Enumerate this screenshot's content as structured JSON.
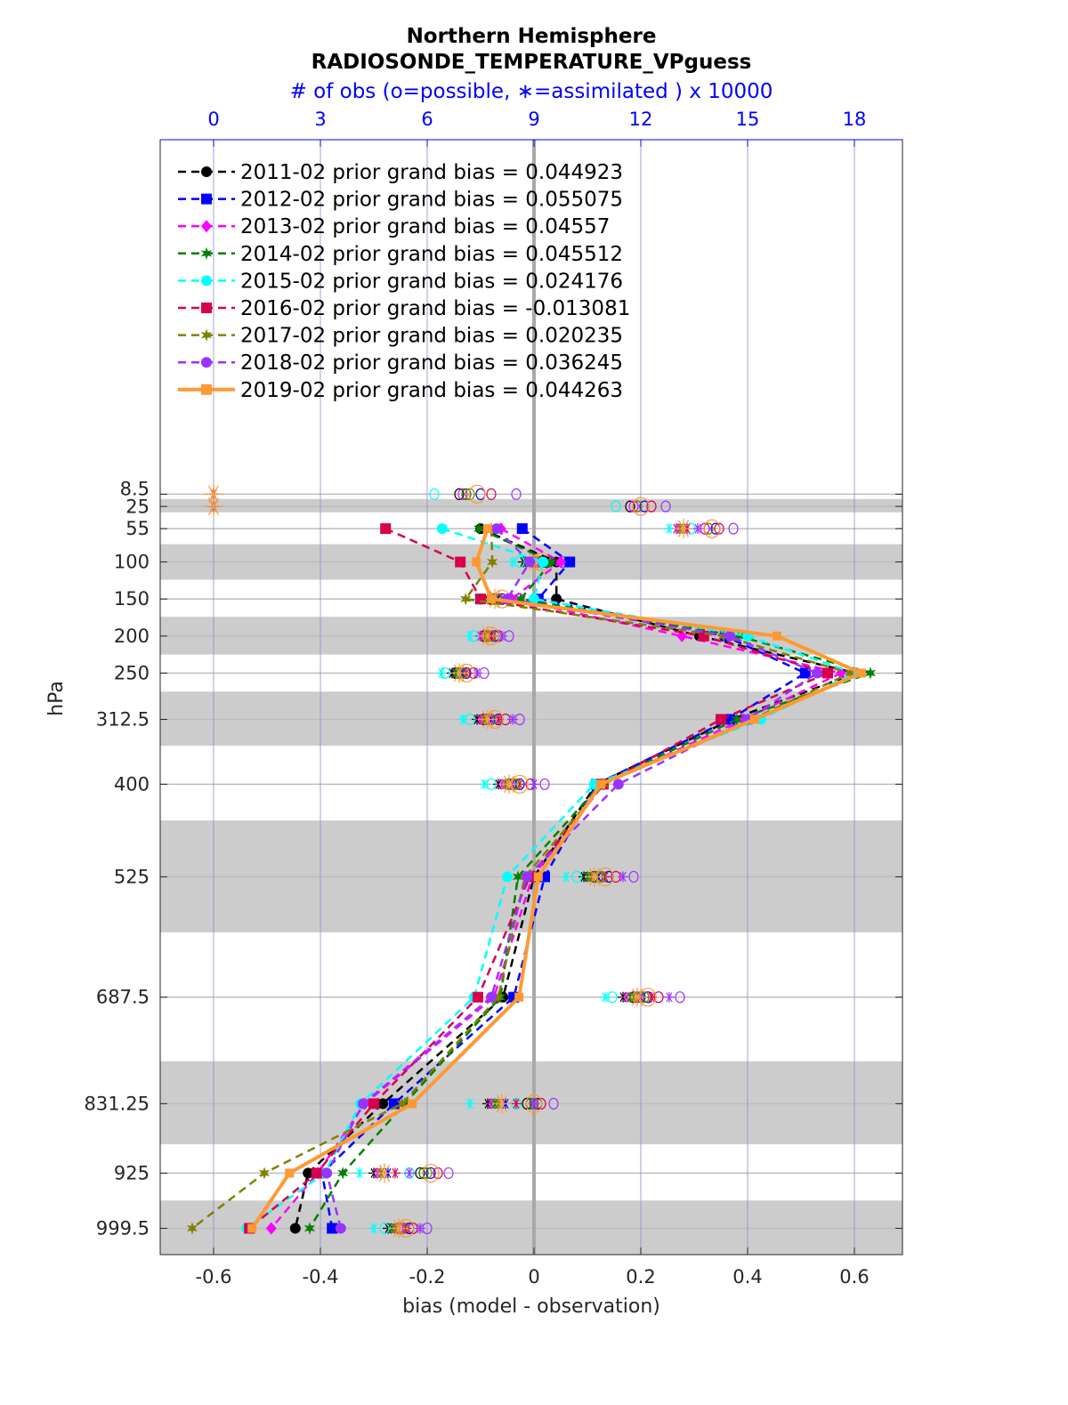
{
  "chart_data": {
    "type": "line",
    "title": "Northern Hemisphere",
    "subtitle": "RADIOSONDE_TEMPERATURE_VPguess",
    "xlabel": "bias (model - observation)",
    "ylabel": "hPa",
    "top_xlabel": "# of obs (o=possible, ∗=assimilated ) x 10000",
    "xlim": [
      -0.7,
      0.69
    ],
    "xticks": [
      -0.6,
      -0.4,
      -0.2,
      0,
      0.2,
      0.4,
      0.6
    ],
    "xtick_labels": [
      "-0.6",
      "-0.4",
      "-0.2",
      "0",
      "0.2",
      "0.4",
      "0.6"
    ],
    "top_xlim": [
      -1.5,
      19.35
    ],
    "top_xticks": [
      0,
      3,
      6,
      9,
      12,
      15,
      18
    ],
    "top_xtick_labels": [
      "0",
      "3",
      "6",
      "9",
      "12",
      "15",
      "18"
    ],
    "ylim": [
      -470,
      1035
    ],
    "y_reversed": true,
    "levels": [
      8.5,
      25,
      55,
      100,
      150,
      200,
      250,
      312.5,
      400,
      525,
      687.5,
      831.25,
      925,
      999.5
    ],
    "level_labels": [
      "8.5",
      "25",
      "55",
      "100",
      "150",
      "200",
      "250",
      "312.5",
      "400",
      "525",
      "687.5",
      "831.25",
      "925",
      "999.5"
    ],
    "shaded_layers": [
      [
        15,
        33
      ],
      [
        76,
        124
      ],
      [
        174,
        225
      ],
      [
        275,
        348
      ],
      [
        449,
        600
      ],
      [
        774,
        886
      ],
      [
        962,
        1035
      ]
    ],
    "grid": true,
    "legend_placement": "top-left",
    "series": [
      {
        "name": "2011-02 prior grand bias = 0.044923",
        "color": "#000000",
        "marker": "circle",
        "style": "dashed",
        "bias": [
          null,
          null,
          -0.1,
          0.042,
          0.042,
          0.31,
          0.603,
          0.37,
          0.117,
          0.0,
          -0.058,
          -0.283,
          -0.423,
          -0.447
        ],
        "possible": [
          6.9,
          11.7,
          13.8,
          9.0,
          7.8,
          7.6,
          6.8,
          7.6,
          8.3,
          10.7,
          11.8,
          8.8,
          5.8,
          5.2
        ],
        "assimilated": [
          0,
          0,
          13.0,
          8.7,
          7.7,
          7.5,
          6.7,
          7.4,
          8.0,
          10.4,
          11.5,
          7.7,
          4.5,
          4.9
        ]
      },
      {
        "name": "2012-02 prior grand bias = 0.055075",
        "color": "#0000ff",
        "marker": "square",
        "style": "dashed",
        "bias": [
          null,
          null,
          -0.022,
          0.067,
          0.008,
          0.358,
          0.508,
          0.367,
          0.117,
          0.02,
          -0.038,
          -0.262,
          -0.397,
          -0.378
        ],
        "possible": [
          7.5,
          12.1,
          14.1,
          9.3,
          8.1,
          7.9,
          7.1,
          8.0,
          8.6,
          11.1,
          12.2,
          9.1,
          6.1,
          5.5
        ],
        "assimilated": [
          0,
          0,
          13.2,
          9.0,
          8.0,
          7.7,
          7.0,
          7.8,
          8.4,
          10.8,
          12.0,
          8.2,
          4.9,
          5.2
        ]
      },
      {
        "name": "2013-02 prior grand bias = 0.04557",
        "color": "#ff00ff",
        "marker": "diamond",
        "style": "dashed",
        "bias": [
          null,
          null,
          -0.062,
          0.05,
          -0.042,
          0.277,
          0.575,
          0.392,
          0.13,
          -0.003,
          -0.075,
          -0.317,
          -0.405,
          -0.492
        ],
        "possible": [
          7.0,
          11.8,
          13.8,
          9.0,
          7.9,
          7.7,
          6.9,
          7.7,
          8.3,
          10.8,
          11.9,
          8.9,
          5.9,
          5.2
        ],
        "assimilated": [
          0,
          0,
          13.0,
          8.8,
          7.8,
          7.5,
          6.8,
          7.5,
          8.1,
          10.5,
          11.6,
          7.8,
          4.6,
          5.0
        ]
      },
      {
        "name": "2014-02 prior grand bias = 0.045512",
        "color": "#008000",
        "marker": "star",
        "style": "dashed",
        "bias": [
          null,
          null,
          -0.103,
          0.033,
          -0.025,
          0.383,
          0.63,
          0.38,
          0.125,
          -0.03,
          -0.063,
          -0.242,
          -0.358,
          -0.42
        ],
        "possible": [
          7.1,
          11.9,
          13.9,
          9.1,
          7.9,
          7.7,
          6.9,
          7.8,
          8.4,
          10.8,
          12.0,
          8.9,
          5.9,
          5.3
        ],
        "assimilated": [
          0,
          0,
          13.1,
          8.8,
          7.8,
          7.6,
          6.8,
          7.6,
          8.2,
          10.5,
          11.7,
          7.9,
          4.7,
          5.0
        ]
      },
      {
        "name": "2015-02 prior grand bias = 0.024176",
        "color": "#00ffff",
        "marker": "circle",
        "style": "dashed",
        "bias": [
          null,
          null,
          -0.172,
          0.017,
          0.0,
          0.4,
          0.6,
          0.425,
          0.113,
          -0.05,
          -0.112,
          -0.325,
          -0.392,
          -0.538
        ],
        "possible": [
          6.2,
          11.3,
          13.4,
          8.6,
          7.5,
          7.3,
          6.5,
          7.2,
          7.8,
          10.2,
          11.2,
          8.5,
          5.5,
          4.8
        ],
        "assimilated": [
          0,
          0,
          12.8,
          8.4,
          7.4,
          7.2,
          6.4,
          7.0,
          7.6,
          9.9,
          11.0,
          7.2,
          4.1,
          4.5
        ]
      },
      {
        "name": "2016-02 prior grand bias = -0.013081",
        "color": "#d6004f",
        "marker": "square",
        "style": "dashed",
        "bias": [
          null,
          null,
          -0.278,
          -0.138,
          -0.1,
          0.318,
          0.55,
          0.35,
          0.13,
          -0.008,
          -0.105,
          -0.3,
          -0.407,
          -0.533
        ],
        "possible": [
          7.8,
          12.3,
          14.2,
          9.4,
          8.3,
          8.0,
          7.3,
          8.2,
          8.9,
          11.3,
          12.5,
          9.2,
          6.3,
          5.6
        ],
        "assimilated": [
          0,
          0,
          13.3,
          9.2,
          8.1,
          7.8,
          7.1,
          8.0,
          8.6,
          11.0,
          12.3,
          8.5,
          5.1,
          5.4
        ]
      },
      {
        "name": "2017-02 prior grand bias = 0.020235",
        "color": "#808000",
        "marker": "star",
        "style": "dashed",
        "bias": [
          null,
          null,
          -0.08,
          -0.078,
          -0.128,
          0.355,
          0.592,
          0.408,
          0.13,
          -0.017,
          -0.067,
          -0.247,
          -0.505,
          -0.64
        ],
        "possible": [
          7.2,
          11.9,
          13.9,
          9.1,
          8.0,
          7.8,
          7.0,
          7.8,
          8.5,
          10.9,
          12.1,
          9.0,
          6.0,
          5.3
        ],
        "assimilated": [
          0,
          0,
          13.1,
          8.9,
          7.9,
          7.6,
          6.9,
          7.6,
          8.2,
          10.6,
          11.8,
          8.0,
          4.7,
          5.1
        ]
      },
      {
        "name": "2018-02 prior grand bias = 0.036245",
        "color": "#9933ff",
        "marker": "circle",
        "style": "dashed",
        "bias": [
          null,
          null,
          -0.07,
          -0.008,
          -0.05,
          0.367,
          0.53,
          0.4,
          0.158,
          -0.013,
          -0.08,
          -0.32,
          -0.388,
          -0.362
        ],
        "possible": [
          8.5,
          12.7,
          14.6,
          9.8,
          8.6,
          8.3,
          7.6,
          8.6,
          9.3,
          11.8,
          13.1,
          9.55,
          6.6,
          6.0
        ],
        "assimilated": [
          0,
          0,
          13.6,
          9.5,
          8.4,
          8.1,
          7.4,
          8.4,
          9.0,
          11.5,
          12.8,
          9.0,
          5.5,
          5.8
        ]
      },
      {
        "name": "2019-02 prior grand bias = 0.044263",
        "color": "#ff9933",
        "marker": "square",
        "style": "solid",
        "bias": [
          null,
          null,
          -0.087,
          -0.108,
          -0.08,
          0.455,
          0.613,
          0.413,
          0.125,
          0.008,
          -0.028,
          -0.228,
          -0.458,
          -0.528
        ],
        "possible": [
          7.4,
          12.0,
          14.0,
          9.2,
          8.1,
          7.8,
          7.1,
          7.9,
          8.6,
          11.0,
          12.2,
          9.0,
          6.1,
          5.4
        ],
        "assimilated": [
          0,
          0,
          13.2,
          9.0,
          7.9,
          7.7,
          6.9,
          7.7,
          8.3,
          10.7,
          11.9,
          8.1,
          4.8,
          5.2
        ]
      }
    ]
  }
}
